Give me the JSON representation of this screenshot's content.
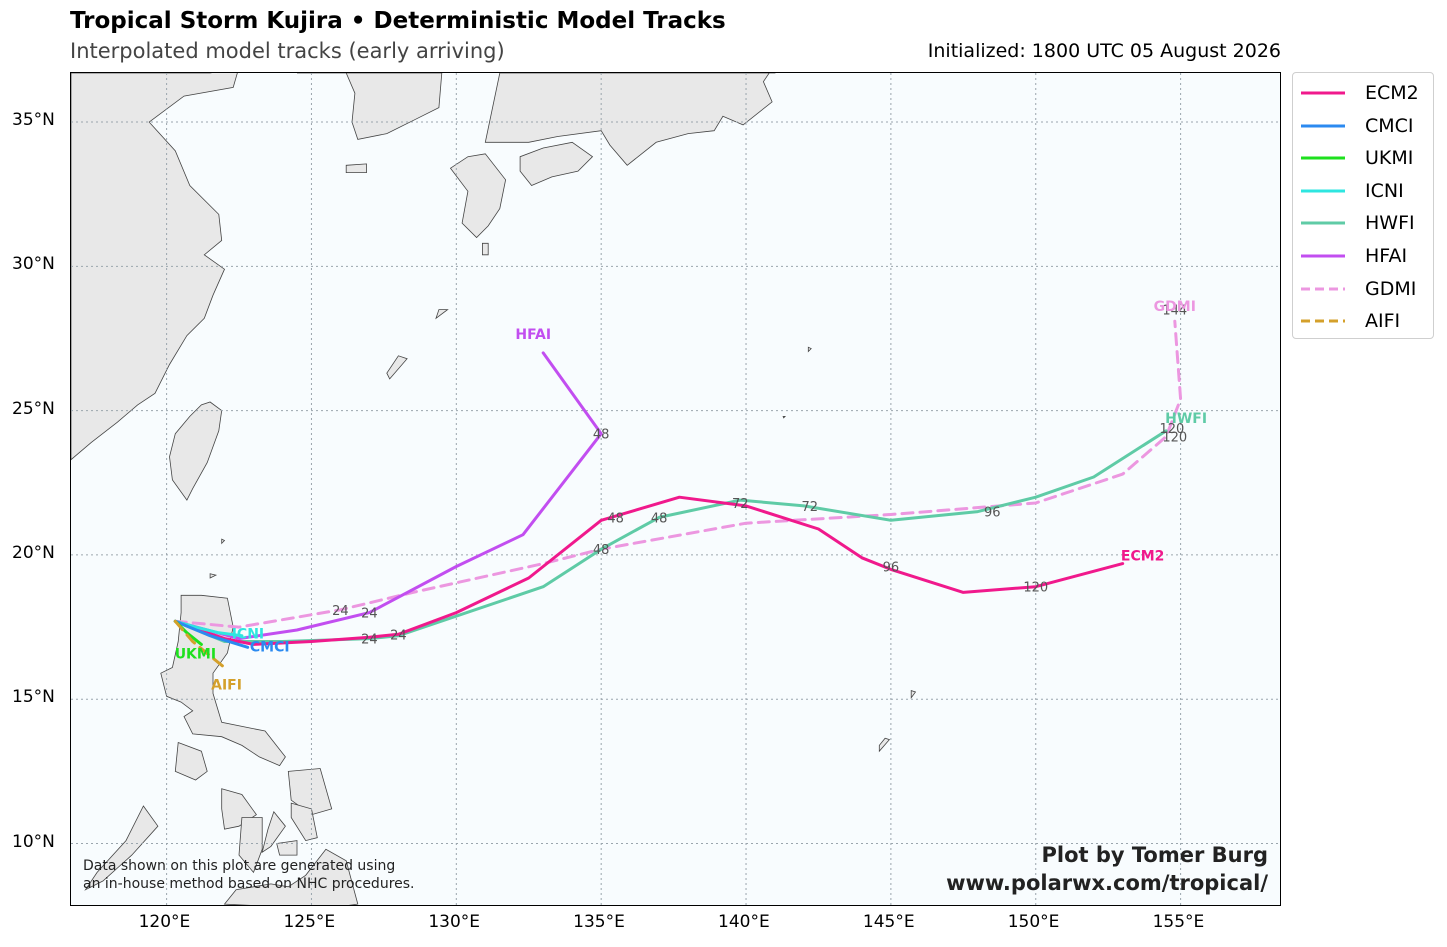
{
  "header": {
    "title": "Tropical Storm Kujira • Deterministic Model Tracks",
    "subtitle": "Interpolated model tracks (early arriving)",
    "initialized": "Initialized: 1800 UTC 05 August 2026"
  },
  "axes": {
    "lat_ticks": [
      {
        "value": 35,
        "label": "35°N"
      },
      {
        "value": 30,
        "label": "30°N"
      },
      {
        "value": 25,
        "label": "25°N"
      },
      {
        "value": 20,
        "label": "20°N"
      },
      {
        "value": 15,
        "label": "15°N"
      },
      {
        "value": 10,
        "label": "10°N"
      }
    ],
    "lon_ticks": [
      {
        "value": 120,
        "label": "120°E"
      },
      {
        "value": 125,
        "label": "125°E"
      },
      {
        "value": 130,
        "label": "130°E"
      },
      {
        "value": 135,
        "label": "135°E"
      },
      {
        "value": 140,
        "label": "140°E"
      },
      {
        "value": 145,
        "label": "145°E"
      },
      {
        "value": 150,
        "label": "150°E"
      },
      {
        "value": 155,
        "label": "155°E"
      }
    ],
    "lon_range": [
      116.7,
      158.5
    ],
    "lat_range": [
      7.8,
      36.7
    ],
    "grid": true
  },
  "colors": {
    "land": "#e8e8e8",
    "coast": "#444444",
    "ocean": "#f8fcfe",
    "grid": "#9aa5ad"
  },
  "legend": {
    "placement": "outside-right-top",
    "items": [
      {
        "label": "ECM2",
        "color": "#f0198c",
        "dash": false
      },
      {
        "label": "CMCI",
        "color": "#2b8af0",
        "dash": false
      },
      {
        "label": "UKMI",
        "color": "#1ee01e",
        "dash": false
      },
      {
        "label": "ICNI",
        "color": "#2ee6e0",
        "dash": false
      },
      {
        "label": "HWFI",
        "color": "#5fcba6",
        "dash": false
      },
      {
        "label": "HFAI",
        "color": "#c24ef0",
        "dash": false
      },
      {
        "label": "GDMI",
        "color": "#ec97e0",
        "dash": true
      },
      {
        "label": "AIFI",
        "color": "#d4a02b",
        "dash": true
      }
    ]
  },
  "chart_data": {
    "type": "map-tracks",
    "series": [
      {
        "name": "GDMI",
        "points": [
          [
            120.3,
            17.7
          ],
          [
            122.5,
            17.5
          ],
          [
            126.0,
            18.1
          ],
          [
            128.5,
            18.7
          ],
          [
            133.0,
            19.7
          ],
          [
            135.0,
            20.2
          ],
          [
            140.0,
            21.1
          ],
          [
            145.0,
            21.4
          ],
          [
            150.0,
            21.8
          ],
          [
            153.0,
            22.8
          ],
          [
            154.5,
            24.1
          ],
          [
            155.0,
            25.4
          ],
          [
            154.8,
            28.1
          ]
        ],
        "taus": [
          {
            "lon": 126.0,
            "lat": 18.1,
            "label": "24"
          },
          {
            "lon": 135.0,
            "lat": 20.2,
            "label": "48"
          },
          {
            "lon": 154.8,
            "lat": 24.1,
            "label": "120"
          },
          {
            "lon": 154.8,
            "lat": 28.5,
            "label": "144"
          }
        ],
        "end_label": "GDMI"
      },
      {
        "name": "HWFI",
        "points": [
          [
            120.3,
            17.7
          ],
          [
            122.0,
            17.0
          ],
          [
            124.0,
            17.0
          ],
          [
            127.0,
            17.1
          ],
          [
            128.0,
            17.2
          ],
          [
            133.0,
            18.9
          ],
          [
            135.0,
            20.2
          ],
          [
            137.0,
            21.3
          ],
          [
            139.8,
            21.9
          ],
          [
            142.0,
            21.7
          ],
          [
            145.0,
            21.2
          ],
          [
            148.0,
            21.5
          ],
          [
            150.0,
            22.0
          ],
          [
            152.0,
            22.7
          ],
          [
            154.5,
            24.3
          ]
        ],
        "taus": [
          {
            "lon": 127.0,
            "lat": 17.1,
            "label": "24"
          },
          {
            "lon": 137.0,
            "lat": 21.3,
            "label": "48"
          },
          {
            "lon": 142.2,
            "lat": 21.7,
            "label": "72"
          },
          {
            "lon": 148.5,
            "lat": 21.5,
            "label": "96"
          },
          {
            "lon": 154.7,
            "lat": 24.4,
            "label": "120"
          }
        ],
        "end_label": "HWFI"
      },
      {
        "name": "ECM2",
        "points": [
          [
            120.3,
            17.7
          ],
          [
            122.0,
            17.1
          ],
          [
            123.0,
            16.9
          ],
          [
            125.0,
            17.0
          ],
          [
            127.0,
            17.15
          ],
          [
            128.0,
            17.25
          ],
          [
            130.0,
            18.0
          ],
          [
            132.5,
            19.2
          ],
          [
            135.0,
            21.2
          ],
          [
            137.7,
            22.0
          ],
          [
            140.0,
            21.7
          ],
          [
            142.5,
            20.9
          ],
          [
            144.0,
            19.9
          ],
          [
            145.0,
            19.5
          ],
          [
            147.5,
            18.7
          ],
          [
            150.0,
            18.9
          ],
          [
            153.0,
            19.7
          ]
        ],
        "taus": [
          {
            "lon": 128.0,
            "lat": 17.25,
            "label": "24"
          },
          {
            "lon": 135.5,
            "lat": 21.3,
            "label": "48"
          },
          {
            "lon": 139.8,
            "lat": 21.8,
            "label": "72"
          },
          {
            "lon": 145.0,
            "lat": 19.6,
            "label": "96"
          },
          {
            "lon": 150.0,
            "lat": 18.9,
            "label": "120"
          }
        ],
        "end_label": "ECM2"
      },
      {
        "name": "HFAI",
        "points": [
          [
            120.3,
            17.7
          ],
          [
            122.5,
            17.1
          ],
          [
            124.5,
            17.4
          ],
          [
            127.0,
            18.0
          ],
          [
            130.0,
            19.6
          ],
          [
            132.3,
            20.7
          ],
          [
            135.0,
            24.2
          ],
          [
            133.0,
            27.0
          ]
        ],
        "taus": [
          {
            "lon": 127.0,
            "lat": 18.0,
            "label": "24"
          },
          {
            "lon": 135.0,
            "lat": 24.2,
            "label": "48"
          }
        ],
        "end_label": "HFAI"
      },
      {
        "name": "ICNI",
        "points": [
          [
            120.3,
            17.7
          ],
          [
            121.0,
            17.5
          ],
          [
            121.8,
            17.3
          ],
          [
            122.6,
            17.2
          ]
        ],
        "taus": [],
        "end_label": "ICNI"
      },
      {
        "name": "CMCI",
        "points": [
          [
            120.3,
            17.7
          ],
          [
            121.5,
            17.2
          ],
          [
            122.8,
            16.8
          ]
        ],
        "taus": [],
        "end_label": "CMCI"
      },
      {
        "name": "UKMI",
        "points": [
          [
            120.3,
            17.7
          ],
          [
            120.7,
            17.3
          ],
          [
            121.2,
            16.9
          ]
        ],
        "taus": [],
        "end_label": "UKMI"
      },
      {
        "name": "AIFI",
        "points": [
          [
            120.3,
            17.7
          ],
          [
            120.9,
            17.0
          ],
          [
            121.5,
            16.5
          ],
          [
            122.0,
            16.1
          ]
        ],
        "taus": [],
        "end_label": "AIFI"
      }
    ]
  },
  "footer": {
    "disclaimer_1": "Data shown on this plot are generated using",
    "disclaimer_2": "an in-house method based on NHC procedures.",
    "credit_1": "Plot by Tomer Burg",
    "credit_2": "www.polarwx.com/tropical/"
  }
}
